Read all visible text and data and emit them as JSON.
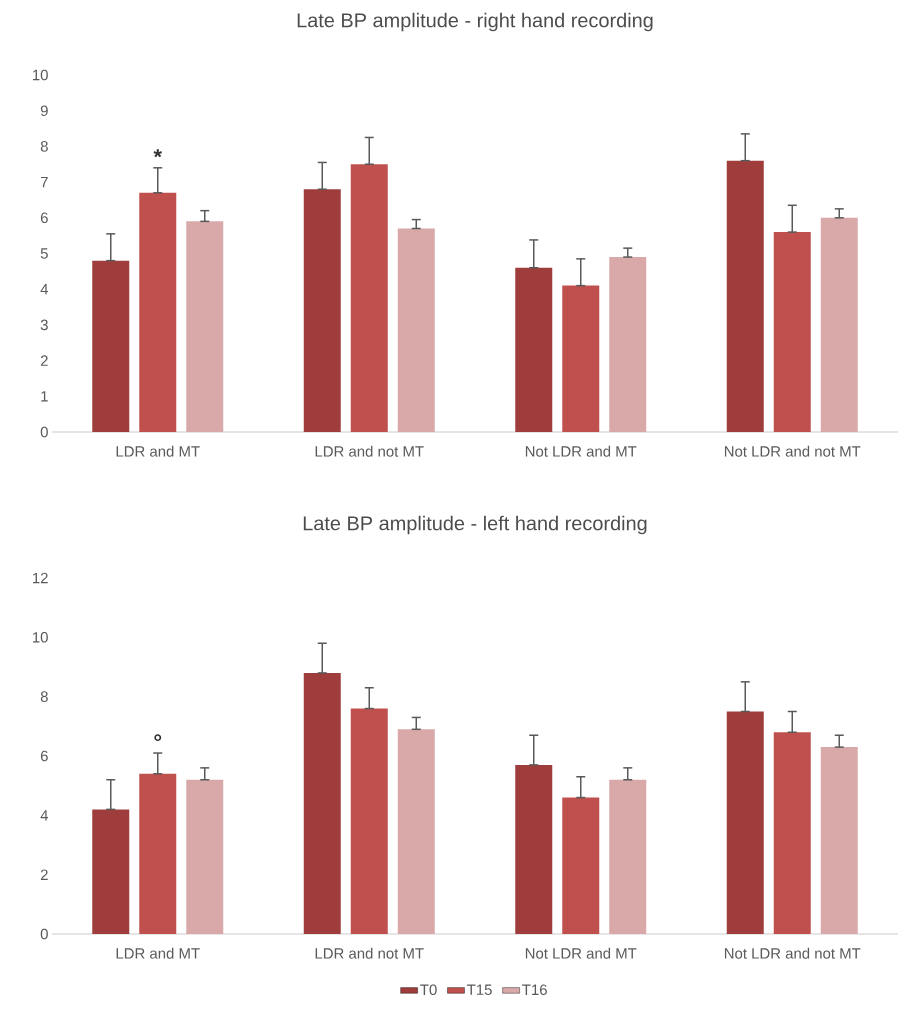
{
  "chart_data": [
    {
      "type": "bar",
      "title": "Late BP amplitude - right hand recording",
      "categories": [
        "LDR and MT",
        "LDR and not MT",
        "Not LDR and MT",
        "Not LDR and not MT"
      ],
      "series": [
        {
          "color": "#9e3d3b",
          "values": [
            4.8,
            6.8,
            4.6,
            7.6
          ],
          "errors": [
            [
              4.8,
              5.55
            ],
            [
              6.8,
              7.55
            ],
            [
              4.6,
              5.38
            ],
            [
              7.6,
              8.35
            ]
          ]
        },
        {
          "color": "#c0504d",
          "values": [
            6.7,
            7.5,
            4.1,
            5.6
          ],
          "errors": [
            [
              6.7,
              7.4
            ],
            [
              7.5,
              8.25
            ],
            [
              4.1,
              4.85
            ],
            [
              5.6,
              6.35
            ]
          ]
        },
        {
          "color": "#d9a8a8",
          "values": [
            5.9,
            5.7,
            4.9,
            6.0
          ],
          "errors": [
            [
              5.9,
              6.2
            ],
            [
              5.7,
              5.95
            ],
            [
              4.9,
              5.15
            ],
            [
              6.0,
              6.25
            ]
          ]
        }
      ],
      "ylim": [
        0,
        10
      ],
      "yticks": [
        0,
        1,
        2,
        3,
        4,
        5,
        6,
        7,
        8,
        9,
        10
      ],
      "annotations": [
        "*"
      ]
    },
    {
      "type": "bar",
      "title": "Late BP amplitude - left hand recording",
      "categories": [
        "LDR and MT",
        "LDR and not MT",
        "Not LDR and MT",
        "Not LDR and not MT"
      ],
      "series": [
        {
          "name": "T0",
          "color": "#9e3d3b",
          "values": [
            4.2,
            8.8,
            5.7,
            7.5
          ],
          "errors": [
            [
              4.2,
              5.2
            ],
            [
              8.8,
              9.8
            ],
            [
              5.7,
              6.7
            ],
            [
              7.5,
              8.5
            ]
          ]
        },
        {
          "name": "T15",
          "color": "#c0504d",
          "values": [
            5.4,
            7.6,
            4.6,
            6.8
          ],
          "errors": [
            [
              5.4,
              6.1
            ],
            [
              7.6,
              8.3
            ],
            [
              4.6,
              5.3
            ],
            [
              6.8,
              7.5
            ]
          ]
        },
        {
          "name": "T16",
          "color": "#d9a8a8",
          "values": [
            5.2,
            6.9,
            5.2,
            6.3
          ],
          "errors": [
            [
              5.2,
              5.6
            ],
            [
              6.9,
              7.3
            ],
            [
              5.2,
              5.6
            ],
            [
              6.3,
              6.7
            ]
          ]
        }
      ],
      "ylim": [
        0,
        12
      ],
      "yticks": [
        0,
        2,
        4,
        6,
        8,
        10,
        12
      ],
      "annotations": [
        "°"
      ],
      "legend": "bottom"
    }
  ]
}
